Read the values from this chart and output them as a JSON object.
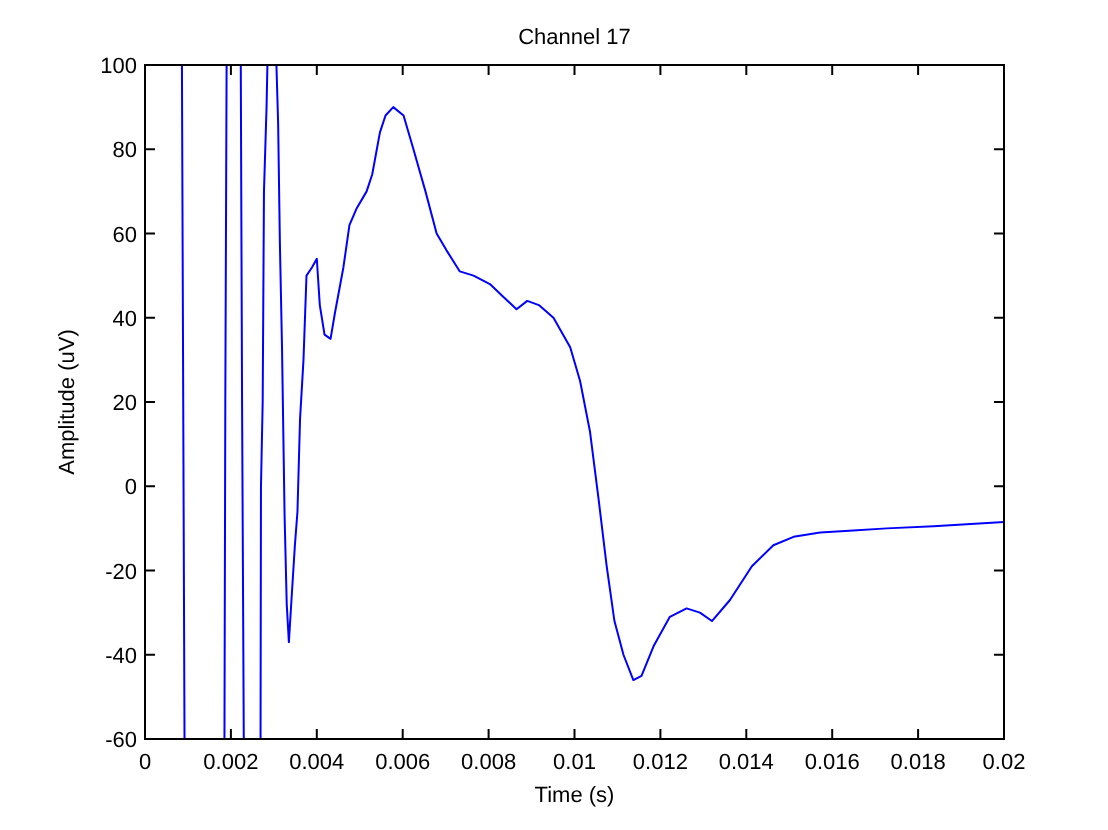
{
  "chart_data": {
    "type": "line",
    "title": "Channel 17",
    "xlabel": "Time (s)",
    "ylabel": "Amplitude (uV)",
    "color": "#0000ff",
    "x": [
      0.00086,
      0.00089,
      0.00092,
      0.0014,
      0.00185,
      0.00187,
      0.0019,
      0.0021,
      0.00223,
      0.00226,
      0.0023,
      0.0025,
      0.00269,
      0.0027,
      0.00274,
      0.00277,
      0.00283,
      0.00285,
      0.0029,
      0.00306,
      0.0031,
      0.00314,
      0.00319,
      0.00325,
      0.0033,
      0.00335,
      0.00341,
      0.00349,
      0.00355,
      0.00361,
      0.00369,
      0.00376,
      0.00389,
      0.004,
      0.00407,
      0.00418,
      0.00432,
      0.00442,
      0.00462,
      0.00476,
      0.00493,
      0.00516,
      0.00529,
      0.00547,
      0.0056,
      0.00578,
      0.00602,
      0.00625,
      0.00653,
      0.00679,
      0.00702,
      0.00733,
      0.00765,
      0.00803,
      0.00834,
      0.00865,
      0.0089,
      0.00917,
      0.00951,
      0.0099,
      0.01013,
      0.01036,
      0.01056,
      0.01075,
      0.01093,
      0.01114,
      0.01137,
      0.01156,
      0.01184,
      0.01222,
      0.01261,
      0.01292,
      0.0132,
      0.01362,
      0.01413,
      0.01463,
      0.0151,
      0.01572,
      0.01649,
      0.01727,
      0.01836,
      0.01913,
      0.02
    ],
    "values": [
      100,
      20,
      -60,
      null,
      -60,
      20,
      100,
      null,
      100,
      20,
      -60,
      null,
      -60,
      0,
      20,
      70,
      90,
      100,
      null,
      100,
      86,
      58,
      33,
      -7,
      -28,
      -37,
      -27,
      -14,
      -6,
      16,
      30,
      50,
      52,
      54,
      43,
      36,
      35,
      41,
      52,
      62,
      66,
      70,
      74,
      84,
      88,
      90,
      88,
      80,
      70,
      60,
      56,
      51,
      50,
      48,
      45,
      42,
      44,
      43,
      40,
      33,
      25,
      13,
      -3,
      -19,
      -32,
      -40,
      -46,
      -45,
      -38,
      -31,
      -29,
      -30,
      -32,
      -27,
      -19,
      -14,
      -12,
      -11,
      -10.5,
      -10,
      -9.5,
      -9,
      -8.5
    ],
    "xlim": [
      0,
      0.02
    ],
    "ylim": [
      -60,
      100
    ],
    "xticks": [
      0,
      0.002,
      0.004,
      0.006,
      0.008,
      0.01,
      0.012,
      0.014,
      0.016,
      0.018,
      0.02
    ],
    "yticks": [
      -60,
      -40,
      -20,
      0,
      20,
      40,
      60,
      80,
      100
    ]
  }
}
